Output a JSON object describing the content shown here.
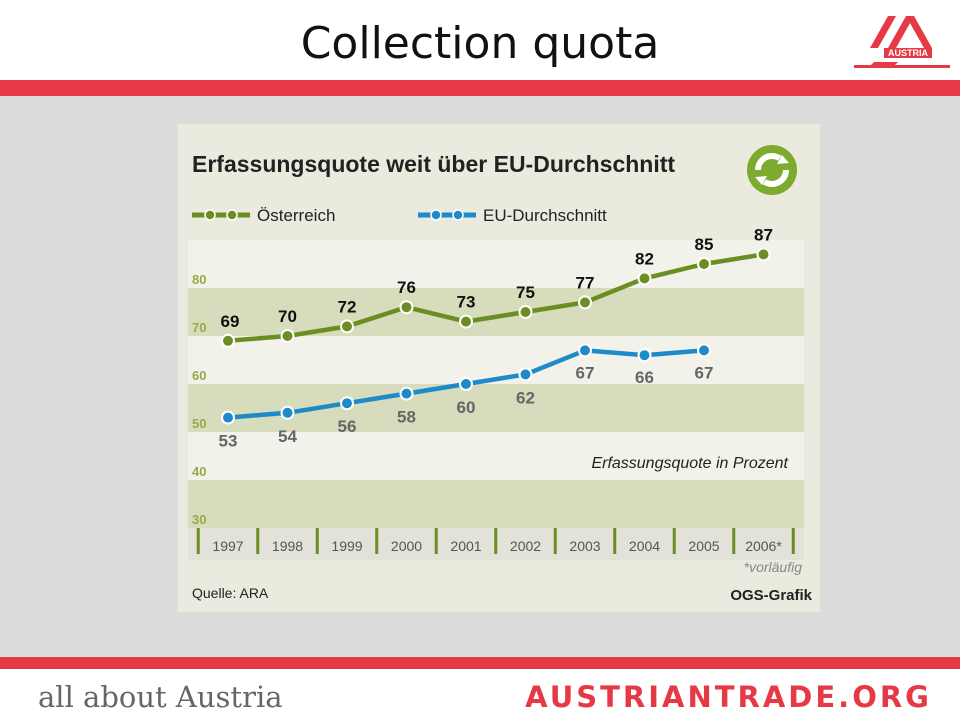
{
  "slide": {
    "title": "Collection quota"
  },
  "logo": {
    "text": "AUSTRIA"
  },
  "footer": {
    "left": "all about Austria",
    "right": "AUSTRIANTRADE.ORG"
  },
  "chart": {
    "title": "Erfassungsquote weit über EU-Durchschnitt",
    "note": "Erfassungsquote in Prozent",
    "footnote": "*vorläufig",
    "source": "Quelle: ARA",
    "credit": "OGS-Grafik",
    "icon": "recycling-arrows-icon"
  },
  "colors": {
    "austria": "#6b8e23",
    "eu": "#1f8ac9",
    "accent": "#e63946",
    "band_dark": "#d6dcbc",
    "band_light": "#f2f2ea",
    "axis_label": "#9aa84a"
  },
  "chart_data": {
    "type": "line",
    "x": [
      "1997",
      "1998",
      "1999",
      "2000",
      "2001",
      "2002",
      "2003",
      "2004",
      "2005",
      "2006*"
    ],
    "series": [
      {
        "name": "Österreich",
        "values": [
          69,
          70,
          72,
          76,
          73,
          75,
          77,
          82,
          85,
          87
        ]
      },
      {
        "name": "EU-Durchschnitt",
        "values": [
          53,
          54,
          56,
          58,
          60,
          62,
          67,
          66,
          67,
          null
        ]
      }
    ],
    "yticks": [
      30,
      40,
      50,
      60,
      70,
      80
    ],
    "ylim": [
      30,
      90
    ],
    "grid": "alternating bands",
    "legend": "top-left"
  }
}
